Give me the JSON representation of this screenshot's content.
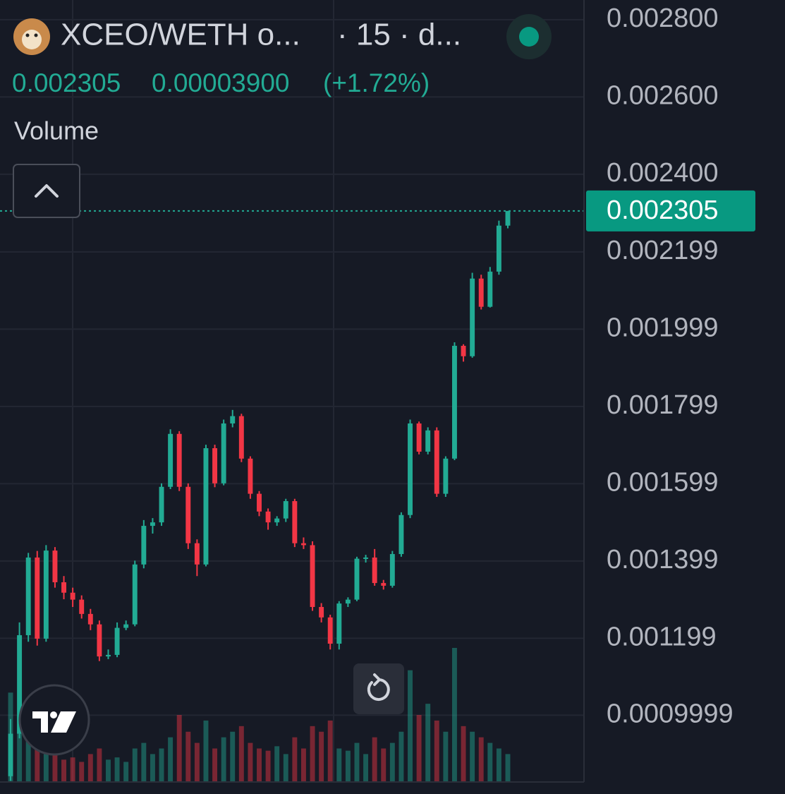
{
  "chart_data": {
    "type": "candlestick",
    "title": "XCEO/WETH o...",
    "interval": "· 15 · d...",
    "volume_label": "Volume",
    "last_price": 0.002305,
    "change": {
      "value": 3.9e-05,
      "label": "0.00003900"
    },
    "change_pct": {
      "value": 1.72,
      "label": "(+1.72%)"
    },
    "up_color": "#22ab94",
    "down_color": "#f23645",
    "grid": true,
    "ylim": [
      0.000827,
      0.002851
    ],
    "yticks": [
      {
        "value": 0.0028,
        "label": "0.002800"
      },
      {
        "value": 0.0026,
        "label": "0.002600"
      },
      {
        "value": 0.0024,
        "label": "0.002400"
      },
      {
        "value": 0.002199,
        "label": "0.002199"
      },
      {
        "value": 0.001999,
        "label": "0.001999"
      },
      {
        "value": 0.001799,
        "label": "0.001799"
      },
      {
        "value": 0.001599,
        "label": "0.001599"
      },
      {
        "value": 0.001399,
        "label": "0.001399"
      },
      {
        "value": 0.001199,
        "label": "0.001199"
      },
      {
        "value": 0.0009999,
        "label": "0.0009999"
      }
    ],
    "candles": [
      [
        0.000842,
        0.00099,
        0.00083,
        0.000952
      ],
      [
        0.000952,
        0.00124,
        0.00094,
        0.001207
      ],
      [
        0.001207,
        0.00142,
        0.00119,
        0.001408
      ],
      [
        0.001408,
        0.001425,
        0.00118,
        0.001198
      ],
      [
        0.001198,
        0.00144,
        0.00119,
        0.001426
      ],
      [
        0.001426,
        0.001435,
        0.00133,
        0.001344
      ],
      [
        0.001344,
        0.00136,
        0.0013,
        0.001317
      ],
      [
        0.001317,
        0.00133,
        0.00128,
        0.001299
      ],
      [
        0.001299,
        0.00131,
        0.00125,
        0.001262
      ],
      [
        0.001262,
        0.001275,
        0.00122,
        0.001235
      ],
      [
        0.001235,
        0.001245,
        0.00114,
        0.001152
      ],
      [
        0.001152,
        0.00117,
        0.001145,
        0.001156
      ],
      [
        0.001156,
        0.00124,
        0.00115,
        0.001226
      ],
      [
        0.001226,
        0.001245,
        0.00122,
        0.001235
      ],
      [
        0.001235,
        0.0014,
        0.00123,
        0.00139
      ],
      [
        0.00139,
        0.001505,
        0.00138,
        0.00149
      ],
      [
        0.00149,
        0.00151,
        0.00147,
        0.001499
      ],
      [
        0.001499,
        0.0016,
        0.00149,
        0.001591
      ],
      [
        0.001591,
        0.00174,
        0.001585,
        0.001728
      ],
      [
        0.001728,
        0.001735,
        0.00158,
        0.001591
      ],
      [
        0.001591,
        0.0016,
        0.00143,
        0.001445
      ],
      [
        0.001445,
        0.001455,
        0.00136,
        0.00139
      ],
      [
        0.00139,
        0.0017,
        0.001385,
        0.001691
      ],
      [
        0.001691,
        0.0017,
        0.00159,
        0.0016
      ],
      [
        0.0016,
        0.001765,
        0.001595,
        0.001755
      ],
      [
        0.001755,
        0.00179,
        0.001745,
        0.001774
      ],
      [
        0.001774,
        0.00178,
        0.001655,
        0.001664
      ],
      [
        0.001664,
        0.00167,
        0.00156,
        0.001573
      ],
      [
        0.001573,
        0.00158,
        0.001515,
        0.001527
      ],
      [
        0.001527,
        0.001535,
        0.00148,
        0.001499
      ],
      [
        0.001499,
        0.001515,
        0.00149,
        0.001509
      ],
      [
        0.001509,
        0.00156,
        0.0015,
        0.001554
      ],
      [
        0.001554,
        0.00156,
        0.001435,
        0.001445
      ],
      [
        0.001445,
        0.00146,
        0.00143,
        0.00144
      ],
      [
        0.00144,
        0.00145,
        0.00127,
        0.00128
      ],
      [
        0.00128,
        0.00129,
        0.00124,
        0.001253
      ],
      [
        0.001253,
        0.00126,
        0.00117,
        0.001185
      ],
      [
        0.001185,
        0.001295,
        0.00117,
        0.001289
      ],
      [
        0.001289,
        0.001305,
        0.00128,
        0.001299
      ],
      [
        0.001299,
        0.00141,
        0.001295,
        0.001405
      ],
      [
        0.001405,
        0.001415,
        0.001395,
        0.001408
      ],
      [
        0.001408,
        0.00143,
        0.001335,
        0.001342
      ],
      [
        0.001342,
        0.00135,
        0.001325,
        0.001335
      ],
      [
        0.001335,
        0.001425,
        0.00133,
        0.001417
      ],
      [
        0.001417,
        0.001525,
        0.00141,
        0.001518
      ],
      [
        0.001518,
        0.001765,
        0.00151,
        0.001755
      ],
      [
        0.001755,
        0.00176,
        0.001675,
        0.001682
      ],
      [
        0.001682,
        0.001745,
        0.001675,
        0.001737
      ],
      [
        0.001737,
        0.001745,
        0.001565,
        0.001573
      ],
      [
        0.001573,
        0.00167,
        0.001565,
        0.001664
      ],
      [
        0.001664,
        0.001965,
        0.00166,
        0.001956
      ],
      [
        0.001956,
        0.00196,
        0.001915,
        0.001929
      ],
      [
        0.001929,
        0.002145,
        0.001925,
        0.00213
      ],
      [
        0.00213,
        0.00214,
        0.00205,
        0.002057
      ],
      [
        0.002057,
        0.00216,
        0.002055,
        0.002148
      ],
      [
        0.002148,
        0.00228,
        0.00214,
        0.002267
      ],
      [
        0.002267,
        0.002305,
        0.00226,
        0.002305
      ]
    ],
    "volume": [
      80,
      60,
      45,
      35,
      25,
      30,
      20,
      22,
      18,
      25,
      30,
      20,
      22,
      18,
      30,
      35,
      25,
      30,
      40,
      60,
      45,
      35,
      55,
      30,
      40,
      45,
      50,
      35,
      30,
      28,
      32,
      25,
      40,
      30,
      50,
      45,
      55,
      30,
      28,
      35,
      25,
      40,
      30,
      35,
      45,
      100,
      60,
      70,
      55,
      45,
      120,
      50,
      45,
      40,
      35,
      30,
      25
    ]
  }
}
